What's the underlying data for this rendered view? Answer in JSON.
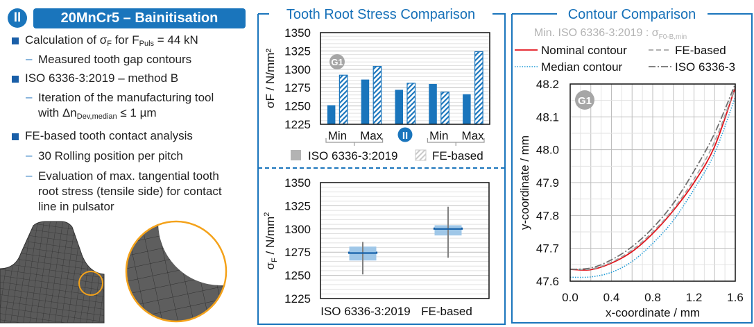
{
  "left": {
    "badge": "II",
    "title": "20MnCr5 – Bainitisation",
    "bullets": [
      {
        "pre": "Calculation of σ",
        "sub1": "F",
        "mid": " for F",
        "sub2": "Puls",
        "post": " = 44 kN"
      },
      {
        "dash": "–",
        "text": "Measured tooth gap contours"
      },
      {
        "text": "ISO 6336-3:2019 – method B"
      },
      {
        "dash": "–",
        "line1": "Iteration of the manufacturing tool",
        "pre": "with Δn",
        "sub": "Dev,median",
        "post": " ≤ 1 µm"
      },
      {
        "text": "FE-based tooth contact analysis"
      },
      {
        "dash": "–",
        "text": "30 Rolling position per pitch"
      },
      {
        "dash": "–",
        "line1": "Evaluation of max. tangential tooth",
        "line2": "root stress (tensile side) for contact",
        "line3": "line in pulsator"
      }
    ]
  },
  "middle": {
    "title": "Tooth Root Stress Comparison"
  },
  "right": {
    "title": "Contour Comparison",
    "subtitle": "Min. ISO 6336-3:2019 : σ",
    "subtitle_sub": "F0-B,min"
  },
  "colors": {
    "accent": "#1a75bc",
    "solid_bar": "#1a75bc",
    "box_fill": "#9fc7e8",
    "whisker": "#808080",
    "nominal": "#e3131b",
    "median": "#1f9bd7",
    "fe": "#a6a6a6",
    "iso": "#707070",
    "highlight": "#f4a21a",
    "g1_badge": "#a6a6a6"
  },
  "chart_data": [
    {
      "type": "bar",
      "ylabel": "σF / N/mm²",
      "ylabel_main": "σ",
      "ylabel_sub": "F",
      "ylabel_rest": " / N/mm",
      "ylabel_sup": "2",
      "ylim": [
        1225,
        1350
      ],
      "yticks": [
        "1225",
        "1250",
        "1275",
        "1300",
        "1325",
        "1350"
      ],
      "grid": true,
      "categories": [
        "Min",
        "Max",
        "II",
        "Min",
        "Max"
      ],
      "group_badge": "G1",
      "series": [
        {
          "name": "ISO 6336-3:2019",
          "values": [
            1251,
            1286,
            1272,
            1280,
            1266
          ],
          "style": "solid"
        },
        {
          "name": "FE-based",
          "values": [
            1292,
            1304,
            1281,
            1269,
            1324
          ],
          "style": "hatched"
        }
      ],
      "legend": "bottom"
    },
    {
      "type": "box",
      "ylabel_main": "σ",
      "ylabel_sub": "F",
      "ylabel_rest": " / N/mm",
      "ylabel_sup": "2",
      "ylim": [
        1225,
        1350
      ],
      "yticks": [
        "1225",
        "1250",
        "1275",
        "1300",
        "1325",
        "1350"
      ],
      "grid": true,
      "categories": [
        "ISO 6336-3:2019",
        "FE-based"
      ],
      "boxes": [
        {
          "min": 1251,
          "q1": 1266,
          "median": 1274,
          "q3": 1281,
          "max": 1286
        },
        {
          "min": 1269,
          "q1": 1293,
          "median": 1300,
          "q3": 1304,
          "max": 1324
        }
      ]
    },
    {
      "type": "line",
      "xlabel": "x-coordinate / mm",
      "ylabel": "y-coordinate / mm",
      "xlim": [
        0,
        1.6
      ],
      "ylim": [
        47.6,
        48.2
      ],
      "xticks": [
        "0.0",
        "0.4",
        "0.8",
        "1.2",
        "1.6"
      ],
      "yticks": [
        "47.6",
        "47.7",
        "47.8",
        "47.9",
        "48.0",
        "48.1",
        "48.2"
      ],
      "grid": true,
      "badge": "G1",
      "x": [
        0,
        0.2,
        0.4,
        0.6,
        0.8,
        1.0,
        1.2,
        1.4,
        1.6
      ],
      "series": [
        {
          "name": "Nominal contour",
          "style": "solid",
          "color": "#e3131b",
          "values": [
            47.636,
            47.635,
            47.655,
            47.69,
            47.745,
            47.815,
            47.9,
            48.01,
            48.19
          ]
        },
        {
          "name": "FE-based",
          "style": "dashed",
          "color": "#a6a6a6",
          "values": [
            47.637,
            47.637,
            47.658,
            47.695,
            47.75,
            47.82,
            47.91,
            48.025,
            48.19
          ]
        },
        {
          "name": "Median contour",
          "style": "dotted",
          "color": "#1f9bd7",
          "values": [
            47.612,
            47.613,
            47.627,
            47.66,
            47.715,
            47.785,
            47.88,
            47.99,
            48.16
          ]
        },
        {
          "name": "ISO 6336-3",
          "style": "dashdot",
          "color": "#707070",
          "values": [
            47.636,
            47.64,
            47.665,
            47.705,
            47.762,
            47.837,
            47.935,
            48.05,
            48.2
          ]
        }
      ],
      "legend": "top"
    }
  ]
}
